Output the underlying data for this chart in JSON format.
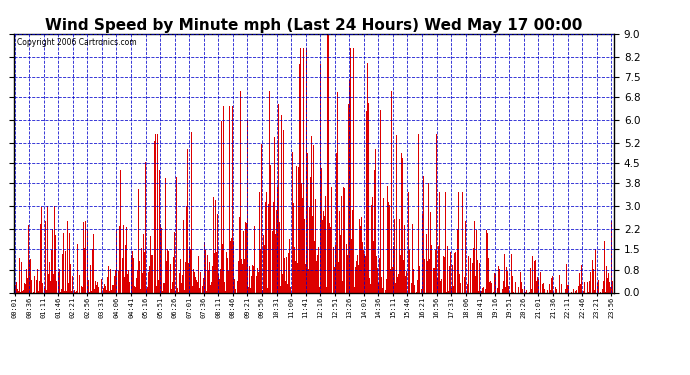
{
  "title": "Wind Speed by Minute mph (Last 24 Hours) Wed May 17 00:00",
  "copyright": "Copyright 2006 Cartronics.com",
  "bar_color": "#dd0000",
  "background_color": "#ffffff",
  "plot_background": "#ffffff",
  "grid_color": "#0000cc",
  "title_fontsize": 11,
  "yticks": [
    0.0,
    0.8,
    1.5,
    2.2,
    3.0,
    3.8,
    4.5,
    5.2,
    6.0,
    6.8,
    7.5,
    8.2,
    9.0
  ],
  "ylim": [
    0,
    9.0
  ],
  "num_minutes": 1440,
  "seed": 42,
  "tick_interval": 35
}
